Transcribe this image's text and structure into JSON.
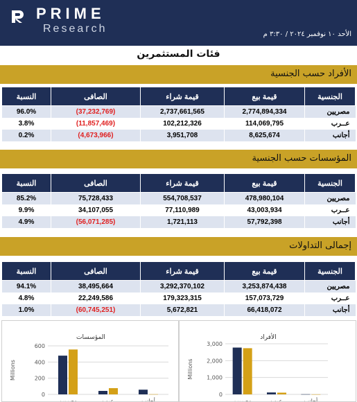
{
  "brand": {
    "name": "PRIME",
    "sub": "Research"
  },
  "date": "الأحد ١٠ نوفمبر ٢٠٢٤ / ٣:٣٠ م",
  "page_title": "فئات المستثمرين",
  "columns": [
    "الجنسية",
    "قيمة بيع",
    "قيمة شراء",
    "الصافى",
    "النسبة"
  ],
  "sections": [
    {
      "title": "الأفراد حسب الجنسية",
      "rows": [
        {
          "nat": "مصريين",
          "sell": "2,774,894,334",
          "buy": "2,737,661,565",
          "net": "(37,232,769)",
          "pct": "96.0%"
        },
        {
          "nat": "عــرب",
          "sell": "114,069,795",
          "buy": "102,212,326",
          "net": "(11,857,469)",
          "pct": "3.8%"
        },
        {
          "nat": "أجانب",
          "sell": "8,625,674",
          "buy": "3,951,708",
          "net": "(4,673,966)",
          "pct": "0.2%"
        }
      ]
    },
    {
      "title": "المؤسسات حسب الجنسية",
      "rows": [
        {
          "nat": "مصريين",
          "sell": "478,980,104",
          "buy": "554,708,537",
          "net": "75,728,433",
          "pct": "85.2%"
        },
        {
          "nat": "عــرب",
          "sell": "43,003,934",
          "buy": "77,110,989",
          "net": "34,107,055",
          "pct": "9.9%"
        },
        {
          "nat": "أجانب",
          "sell": "57,792,398",
          "buy": "1,721,113",
          "net": "(56,071,285)",
          "pct": "4.9%"
        }
      ]
    },
    {
      "title": "إجمالى التداولات",
      "rows": [
        {
          "nat": "مصريين",
          "sell": "3,253,874,438",
          "buy": "3,292,370,102",
          "net": "38,495,664",
          "pct": "94.1%"
        },
        {
          "nat": "عــرب",
          "sell": "157,073,729",
          "buy": "179,323,315",
          "net": "22,249,586",
          "pct": "4.8%"
        },
        {
          "nat": "أجانب",
          "sell": "66,418,072",
          "buy": "5,672,821",
          "net": "(60,745,251)",
          "pct": "1.0%"
        }
      ]
    }
  ],
  "chart_data": [
    {
      "type": "bar",
      "title": "المؤسسات",
      "ylabel": "Millions",
      "yticks": [
        "0",
        "200",
        "400",
        "600"
      ],
      "ylim": [
        0,
        600
      ],
      "colors": [
        "#1f2f56",
        "#d4a017"
      ],
      "categories": [
        "مصريين",
        "عرب",
        "أجانب"
      ],
      "series": [
        {
          "values": [
            479,
            43,
            58
          ]
        },
        {
          "values": [
            555,
            77,
            2
          ]
        }
      ]
    },
    {
      "type": "bar",
      "title": "الأفراد",
      "ylabel": "Millions",
      "yticks": [
        "0",
        "1,000",
        "2,000",
        "3,000"
      ],
      "ylim": [
        0,
        3000
      ],
      "colors": [
        "#1f2f56",
        "#d4a017"
      ],
      "categories": [
        "مصريين",
        "عرب",
        "أجانب"
      ],
      "series": [
        {
          "values": [
            2775,
            114,
            9
          ]
        },
        {
          "values": [
            2738,
            102,
            4
          ]
        }
      ]
    }
  ]
}
